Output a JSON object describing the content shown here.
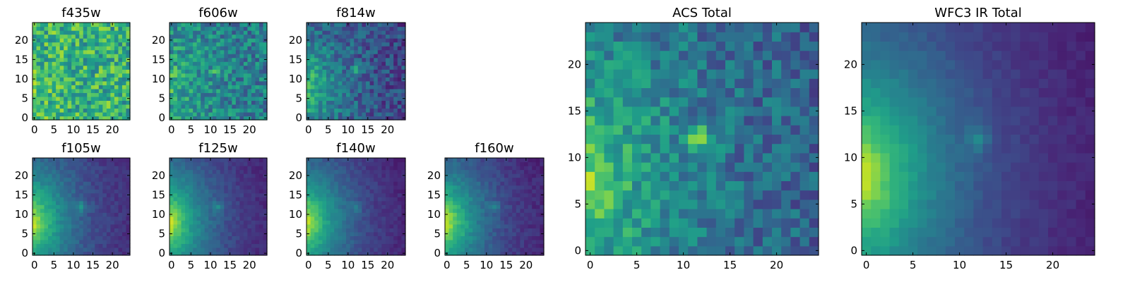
{
  "chart_data": [
    {
      "type": "heatmap",
      "title": "f435w",
      "field": "f435w",
      "xlim": [
        0,
        24
      ],
      "ylim": [
        0,
        24
      ],
      "x_ticks": [
        0,
        5,
        10,
        15,
        20
      ],
      "y_ticks": [
        0,
        5,
        10,
        15,
        20
      ],
      "colormap": "viridis",
      "grid": false
    },
    {
      "type": "heatmap",
      "title": "f606w",
      "field": "f606w",
      "xlim": [
        0,
        24
      ],
      "ylim": [
        0,
        24
      ],
      "x_ticks": [
        0,
        5,
        10,
        15,
        20
      ],
      "y_ticks": [
        0,
        5,
        10,
        15,
        20
      ],
      "colormap": "viridis",
      "grid": false
    },
    {
      "type": "heatmap",
      "title": "f814w",
      "field": "f814w",
      "xlim": [
        0,
        24
      ],
      "ylim": [
        0,
        24
      ],
      "x_ticks": [
        0,
        5,
        10,
        15,
        20
      ],
      "y_ticks": [
        0,
        5,
        10,
        15,
        20
      ],
      "colormap": "viridis",
      "grid": false
    },
    {
      "type": "heatmap",
      "title": "f105w",
      "field": "f105w",
      "xlim": [
        0,
        24
      ],
      "ylim": [
        0,
        24
      ],
      "x_ticks": [
        0,
        5,
        10,
        15,
        20
      ],
      "y_ticks": [
        0,
        5,
        10,
        15,
        20
      ],
      "colormap": "viridis",
      "grid": false
    },
    {
      "type": "heatmap",
      "title": "f125w",
      "field": "f125w",
      "xlim": [
        0,
        24
      ],
      "ylim": [
        0,
        24
      ],
      "x_ticks": [
        0,
        5,
        10,
        15,
        20
      ],
      "y_ticks": [
        0,
        5,
        10,
        15,
        20
      ],
      "colormap": "viridis",
      "grid": false
    },
    {
      "type": "heatmap",
      "title": "f140w",
      "field": "f140w",
      "xlim": [
        0,
        24
      ],
      "ylim": [
        0,
        24
      ],
      "x_ticks": [
        0,
        5,
        10,
        15,
        20
      ],
      "y_ticks": [
        0,
        5,
        10,
        15,
        20
      ],
      "colormap": "viridis",
      "grid": false
    },
    {
      "type": "heatmap",
      "title": "f160w",
      "field": "f160w",
      "xlim": [
        0,
        24
      ],
      "ylim": [
        0,
        24
      ],
      "x_ticks": [
        0,
        5,
        10,
        15,
        20
      ],
      "y_ticks": [
        0,
        5,
        10,
        15,
        20
      ],
      "colormap": "viridis",
      "grid": false
    },
    {
      "type": "heatmap",
      "title": "ACS Total",
      "field": "acs",
      "xlim": [
        0,
        24
      ],
      "ylim": [
        0,
        24
      ],
      "x_ticks": [
        0,
        5,
        10,
        15,
        20
      ],
      "y_ticks": [
        0,
        5,
        10,
        15,
        20
      ],
      "colormap": "viridis",
      "grid": false
    },
    {
      "type": "heatmap",
      "title": "WFC3 IR Total",
      "field": "wfc3",
      "xlim": [
        0,
        24
      ],
      "ylim": [
        0,
        24
      ],
      "x_ticks": [
        0,
        5,
        10,
        15,
        20
      ],
      "y_ticks": [
        0,
        5,
        10,
        15,
        20
      ],
      "colormap": "viridis",
      "grid": false
    }
  ],
  "colors": {
    "colormap_stops": [
      "#440154",
      "#482878",
      "#3e4989",
      "#31688e",
      "#26828e",
      "#1f9e89",
      "#35b779",
      "#6ece58",
      "#b5de2b",
      "#fde725"
    ]
  }
}
